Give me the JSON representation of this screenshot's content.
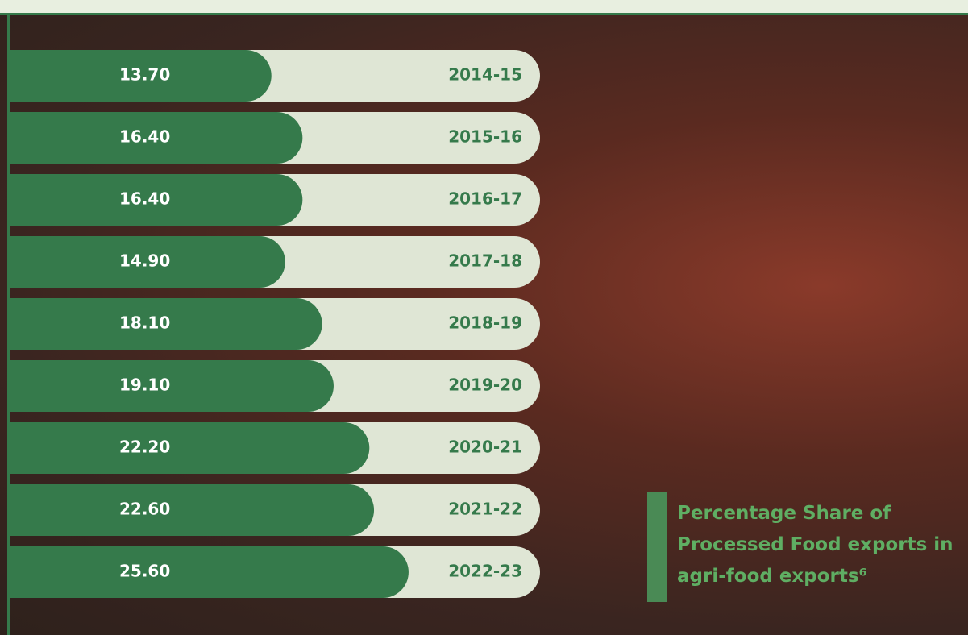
{
  "chart_data": {
    "type": "bar",
    "orientation": "horizontal",
    "title": "Percentage Share of Processed Food exports in agri-food exports⁶",
    "categories": [
      "2014-15",
      "2015-16",
      "2016-17",
      "2017-18",
      "2018-19",
      "2019-20",
      "2020-21",
      "2021-22",
      "2022-23"
    ],
    "values": [
      13.7,
      16.4,
      16.4,
      14.9,
      18.1,
      19.1,
      22.2,
      22.6,
      25.6
    ],
    "value_labels": [
      "13.70",
      "16.40",
      "16.40",
      "14.90",
      "18.10",
      "19.10",
      "22.20",
      "22.60",
      "25.60"
    ],
    "color": "#357a4b",
    "track_color": "#dfe6d5",
    "xlim": [
      -9,
      37
    ]
  }
}
